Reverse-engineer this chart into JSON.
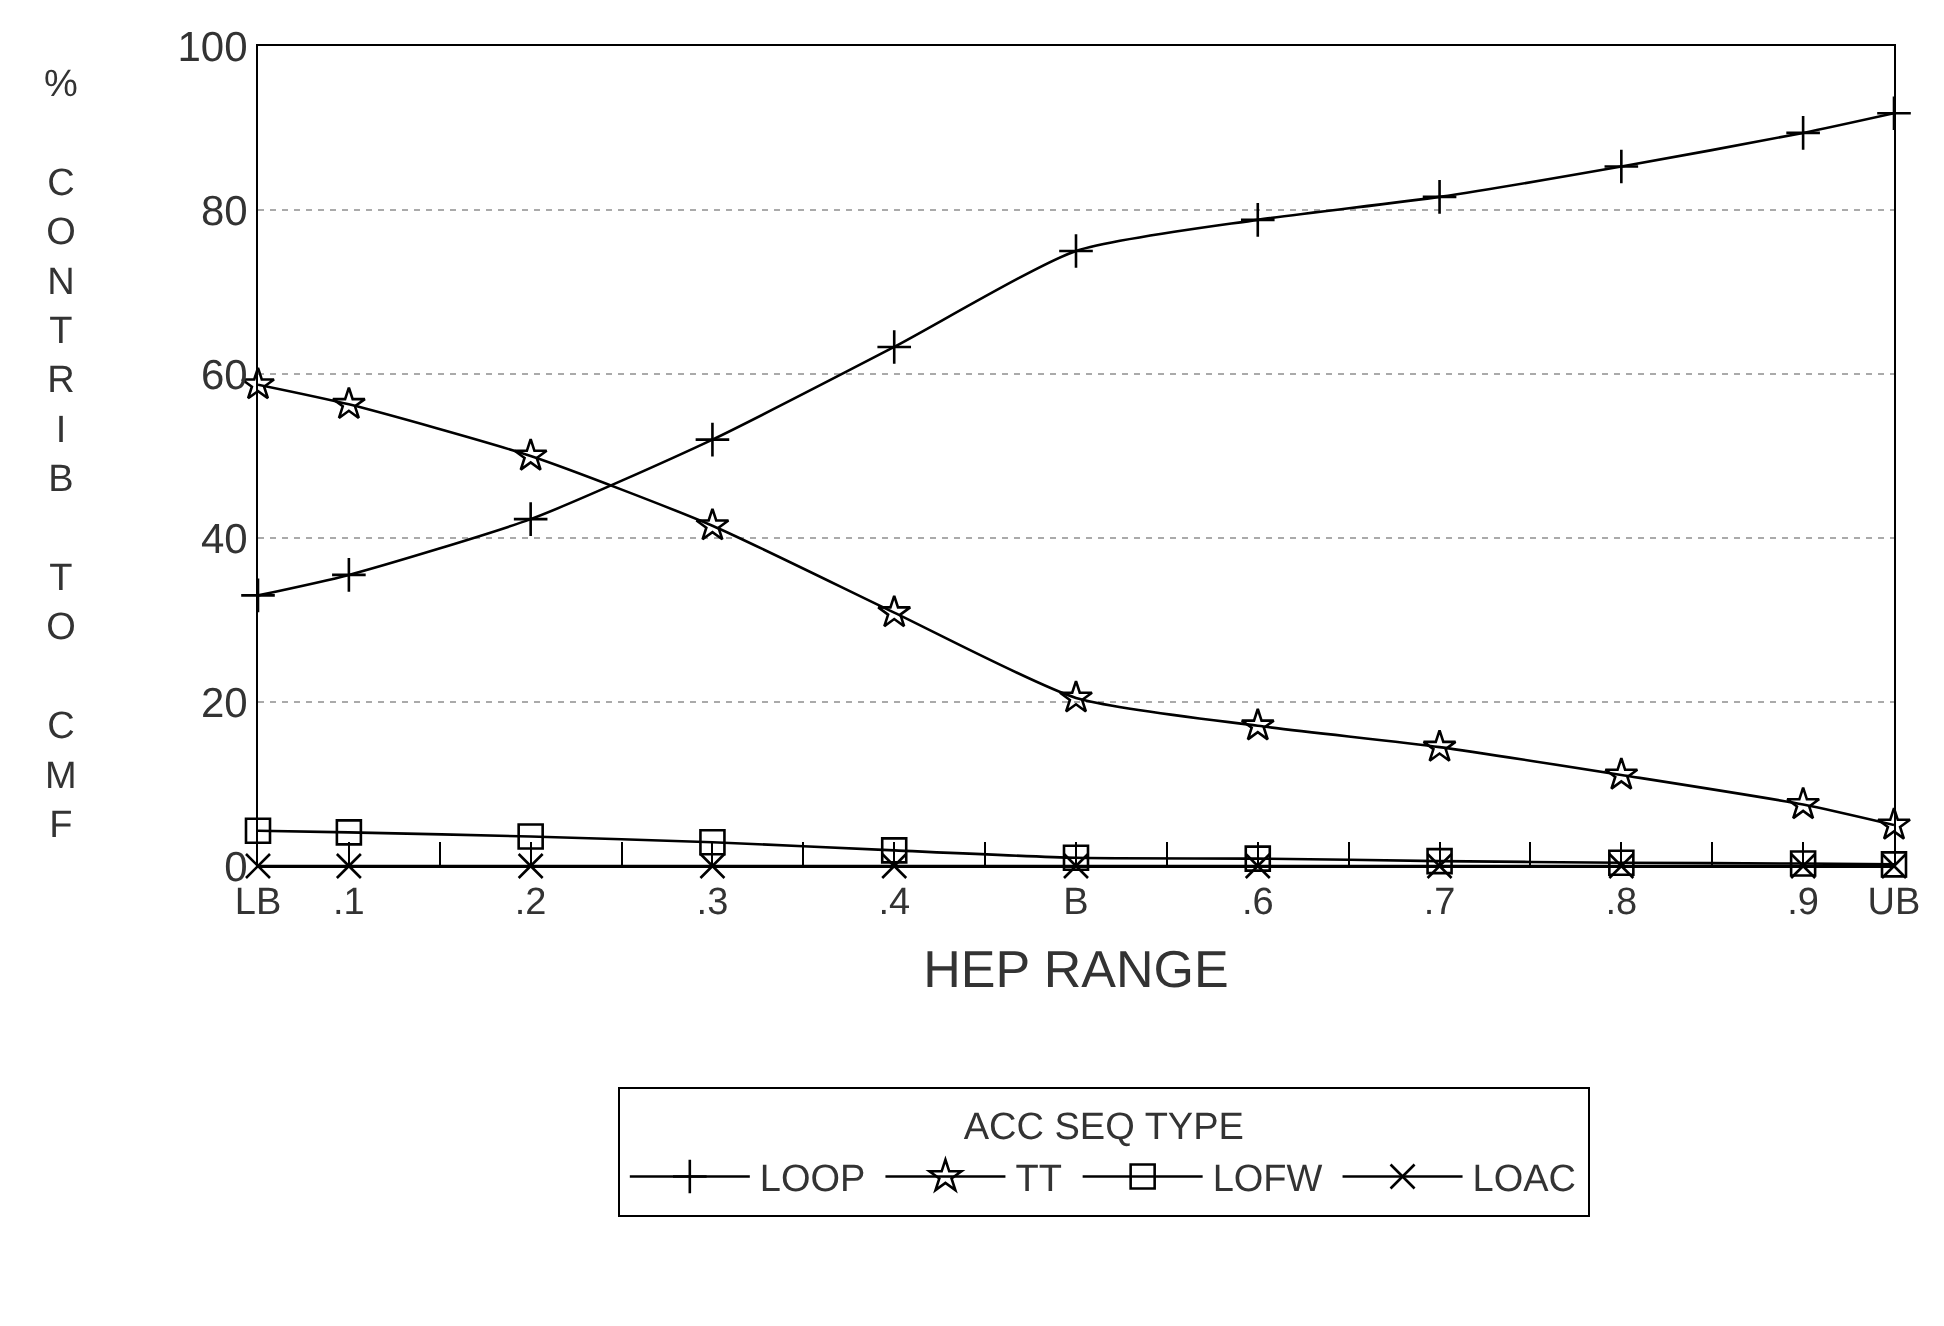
{
  "chart_data": {
    "type": "line",
    "xlabel": "HEP RANGE",
    "ylabel": "% CONTRIB TO CMF",
    "legend_title": "ACC SEQ TYPE",
    "x": [
      0.05,
      0.1,
      0.2,
      0.3,
      0.4,
      0.5,
      0.6,
      0.7,
      0.8,
      0.9,
      0.95
    ],
    "xlim": [
      0.05,
      0.95
    ],
    "xticks": [
      {
        "value": 0.05,
        "label": "LB"
      },
      {
        "value": 0.1,
        "label": ".1"
      },
      {
        "value": 0.15,
        "label": null
      },
      {
        "value": 0.2,
        "label": ".2"
      },
      {
        "value": 0.25,
        "label": null
      },
      {
        "value": 0.3,
        "label": ".3"
      },
      {
        "value": 0.35,
        "label": null
      },
      {
        "value": 0.4,
        "label": ".4"
      },
      {
        "value": 0.45,
        "label": null
      },
      {
        "value": 0.5,
        "label": "B"
      },
      {
        "value": 0.55,
        "label": null
      },
      {
        "value": 0.6,
        "label": ".6"
      },
      {
        "value": 0.65,
        "label": null
      },
      {
        "value": 0.7,
        "label": ".7"
      },
      {
        "value": 0.75,
        "label": null
      },
      {
        "value": 0.8,
        "label": ".8"
      },
      {
        "value": 0.85,
        "label": null
      },
      {
        "value": 0.9,
        "label": ".9"
      },
      {
        "value": 0.95,
        "label": "UB"
      }
    ],
    "ylim": [
      0,
      100
    ],
    "yticks": [
      0,
      20,
      40,
      60,
      80,
      100
    ],
    "grid": "y",
    "legend": "bottom",
    "line_style": "solid",
    "series": [
      {
        "name": "LOOP",
        "color": "#000000",
        "marker": "cross",
        "values": [
          33,
          35.5,
          42.3,
          52,
          63.3,
          75,
          78.8,
          81.6,
          85.3,
          89.4,
          91.8
        ]
      },
      {
        "name": "TT",
        "color": "#000000",
        "marker": "star",
        "values": [
          58.7,
          56.3,
          50,
          41.5,
          30.9,
          20.5,
          17.1,
          14.5,
          11.1,
          7.5,
          5
        ]
      },
      {
        "name": "LOFW",
        "color": "#000000",
        "marker": "square",
        "values": [
          4.3,
          4.1,
          3.6,
          2.9,
          1.9,
          1,
          0.9,
          0.6,
          0.4,
          0.3,
          0.2
        ]
      },
      {
        "name": "LOAC",
        "color": "#000000",
        "marker": "x",
        "values": [
          0,
          0,
          0,
          0,
          0,
          0,
          0,
          0,
          0,
          0,
          0
        ]
      }
    ]
  }
}
